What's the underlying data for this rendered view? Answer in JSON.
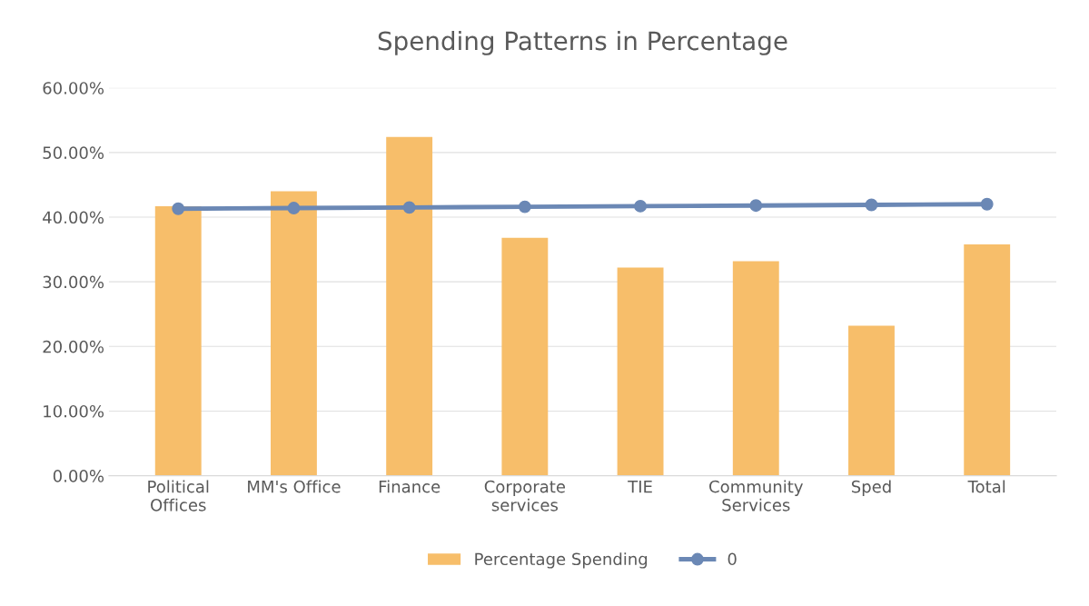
{
  "chart_data": {
    "type": "bar",
    "title": "Spending Patterns in Percentage",
    "categories": [
      "Political\nOffices",
      "MM's Office",
      "Finance",
      "Corporate\nservices",
      "TIE",
      "Community\nServices",
      "Sped",
      "Total"
    ],
    "series": [
      {
        "name": "Percentage Spending",
        "color": "#f7be6a",
        "values": [
          41.7,
          44.0,
          52.4,
          36.8,
          32.2,
          33.2,
          23.2,
          35.8
        ]
      },
      {
        "name": "0",
        "type": "line",
        "color": "#6b88b5",
        "marker": "circle",
        "values": [
          41.3,
          41.4,
          41.5,
          41.6,
          41.7,
          41.8,
          41.9,
          42.0
        ]
      }
    ],
    "ylim": [
      0,
      60
    ],
    "yticks": [
      {
        "value": 0,
        "label": "0.00%"
      },
      {
        "value": 10,
        "label": "10.00%"
      },
      {
        "value": 20,
        "label": "20.00%"
      },
      {
        "value": 30,
        "label": "30.00%"
      },
      {
        "value": 40,
        "label": "40.00%"
      },
      {
        "value": 50,
        "label": "50.00%"
      },
      {
        "value": 60,
        "label": "60.00%"
      }
    ],
    "grid": "y",
    "legend": "bottom"
  }
}
